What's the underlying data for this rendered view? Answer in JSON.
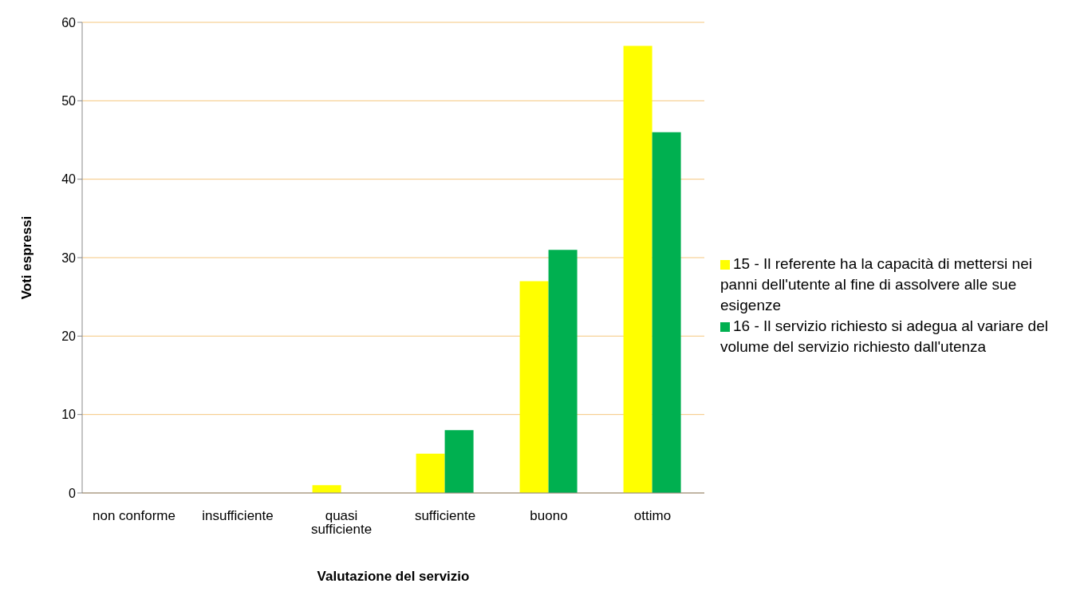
{
  "chart_data": {
    "type": "bar",
    "xlabel": "Valutazione del servizio",
    "ylabel": "Voti espressi",
    "categories": [
      "non conforme",
      "insufficiente",
      "quasi sufficiente",
      "sufficiente",
      "buono",
      "ottimo"
    ],
    "series": [
      {
        "name": "15 - Il referente ha la capacità di mettersi nei panni dell'utente al fine di assolvere alle sue esigenze",
        "color": "#ffff00",
        "values": [
          0,
          0,
          1,
          5,
          27,
          57
        ]
      },
      {
        "name": "16 - Il servizio richiesto si adegua al variare del volume del servizio richiesto dall'utenza",
        "color": "#00b050",
        "values": [
          0,
          0,
          0,
          8,
          31,
          46
        ]
      }
    ],
    "ylim": [
      0,
      60
    ],
    "yticks": [
      0,
      10,
      20,
      30,
      40,
      50,
      60
    ],
    "grid": "y",
    "legend": "right"
  }
}
